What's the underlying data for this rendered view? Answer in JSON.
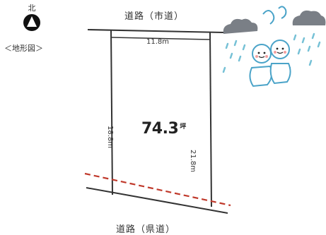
{
  "north": {
    "label": "北",
    "caption": "＜地形図＞",
    "icon": "north-arrow-icon"
  },
  "roads": {
    "top": "道路（市道）",
    "bottom": "道路（県道）"
  },
  "lot": {
    "top_frontage": "11.8m",
    "left_side": "18.8m",
    "right_side": "21.8m",
    "area_value": "74.3",
    "area_unit": "坪"
  },
  "decorations": {
    "rain_clouds": "rain-cloud-icon",
    "teru_teru_bozu": "teru-teru-bozu-icon"
  },
  "colors": {
    "line": "#333333",
    "setback_line": "#c0392b",
    "cloud": "#7a7f86",
    "rain": "#76c1d6",
    "doll_outline": "#4aa3c8"
  }
}
